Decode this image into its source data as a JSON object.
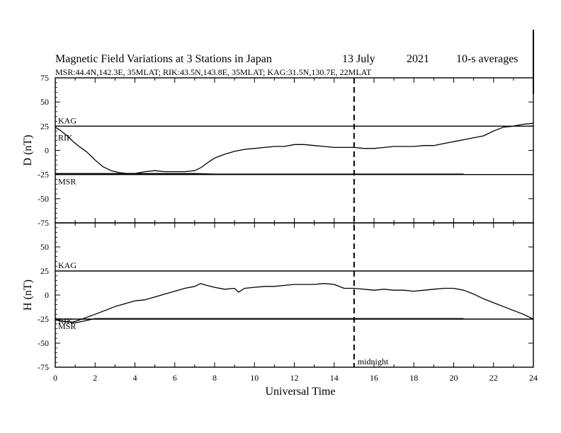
{
  "figure": {
    "title": "Magnetic Field Variations at 3 Stations in Japan",
    "date": "13 July",
    "year": "2021",
    "averaging": "10-s averages",
    "stations_line": "MSR:44.4N,142.3E, 35MLAT;  RIK:43.5N,143.8E, 35MLAT;  KAG:31.5N,130.7E, 22MLAT",
    "midnight_label": "midnight",
    "midnight_ut": 15
  },
  "chart_data": [
    {
      "type": "line",
      "title": "",
      "ylabel": "D (nT)",
      "xlabel": "",
      "xlim": [
        0,
        24
      ],
      "ylim": [
        -75,
        75
      ],
      "yticks": [
        "75",
        "50",
        "25",
        "0",
        "-25",
        "-50",
        "-75"
      ],
      "baselines": [
        {
          "name": "KAG",
          "y": 25
        },
        {
          "name": "RIK",
          "y": 13
        },
        {
          "name": "MSR",
          "y": -25
        }
      ],
      "series": [
        {
          "name": "RIK",
          "x": [
            0,
            0.3,
            0.6,
            0.9,
            1.2,
            1.6,
            2,
            2.4,
            2.8,
            3.2,
            3.6,
            4,
            4.5,
            5,
            5.5,
            6,
            6.5,
            7,
            7.3,
            7.7,
            8,
            8.5,
            9,
            9.5,
            10,
            10.5,
            11,
            11.5,
            12,
            12.5,
            13,
            13.5,
            14,
            14.5,
            15,
            15.5,
            16,
            16.5,
            17,
            17.5,
            18,
            18.5,
            19,
            19.5,
            20,
            20.5,
            21,
            21.5,
            22,
            22.5,
            23,
            23.5,
            24
          ],
          "y": [
            24,
            20,
            15,
            9,
            4,
            -2,
            -10,
            -17,
            -21,
            -23,
            -24,
            -24,
            -22,
            -21,
            -22,
            -22,
            -22,
            -21,
            -18,
            -12,
            -8,
            -4,
            -1,
            1,
            2,
            3,
            4,
            4,
            6,
            6,
            5,
            4,
            3,
            3,
            3,
            2,
            2,
            3,
            4,
            4,
            4,
            5,
            5,
            7,
            9,
            11,
            13,
            15,
            20,
            24,
            25,
            27,
            28
          ]
        },
        {
          "name": "MSR",
          "x": [
            0,
            1,
            2,
            3,
            4,
            5,
            6,
            7,
            8,
            9,
            10,
            11,
            12,
            13,
            14,
            15,
            16,
            17,
            18,
            19,
            20,
            20.5
          ],
          "y": [
            -24,
            -24,
            -24,
            -24,
            -24,
            -24,
            -24,
            -24,
            -24.5,
            -24.5,
            -24.5,
            -24.5,
            -24.5,
            -24.5,
            -24.5,
            -24.5,
            -24.5,
            -24.5,
            -24.5,
            -24.5,
            -24.5,
            -24.5
          ]
        }
      ]
    },
    {
      "type": "line",
      "title": "",
      "ylabel": "H (nT)",
      "xlabel": "Universal Time",
      "xlim": [
        0,
        24
      ],
      "ylim": [
        -75,
        75
      ],
      "xticks": [
        "0",
        "2",
        "4",
        "6",
        "8",
        "10",
        "12",
        "14",
        "16",
        "18",
        "20",
        "22",
        "24"
      ],
      "yticks": [
        "75",
        "50",
        "25",
        "0",
        "-25",
        "-50",
        "-75"
      ],
      "baselines": [
        {
          "name": "KAG",
          "y": 25
        },
        {
          "name": "RIK",
          "y": -27
        },
        {
          "name": "MSR",
          "y": -25
        }
      ],
      "series": [
        {
          "name": "RIK",
          "x": [
            0,
            0.3,
            0.6,
            0.9,
            1.2,
            1.6,
            2,
            2.5,
            3,
            3.5,
            4,
            4.5,
            5,
            5.5,
            6,
            6.5,
            7,
            7.3,
            7.6,
            8,
            8.5,
            9,
            9.2,
            9.5,
            10,
            10.5,
            11,
            11.5,
            12,
            12.5,
            13,
            13.5,
            14,
            14.5,
            15,
            15.5,
            16,
            16.5,
            17,
            17.5,
            18,
            18.5,
            19,
            19.5,
            20,
            20.5,
            21,
            21.5,
            22,
            22.5,
            23,
            23.5,
            24
          ],
          "y": [
            -24,
            -27,
            -28,
            -28,
            -26,
            -23,
            -20,
            -16,
            -12,
            -9,
            -6,
            -5,
            -2,
            1,
            4,
            7,
            9,
            12,
            10,
            8,
            6,
            7,
            3,
            7,
            8,
            9,
            9,
            10,
            11,
            11,
            11,
            12,
            11,
            7,
            7,
            6,
            5,
            6,
            5,
            5,
            4,
            5,
            6,
            7,
            7,
            5,
            1,
            -4,
            -8,
            -12,
            -16,
            -20,
            -25
          ]
        },
        {
          "name": "MSR",
          "x": [
            0,
            1,
            2,
            3,
            4,
            5,
            6,
            7,
            8,
            9,
            10,
            11,
            12,
            13,
            14,
            15,
            16,
            17,
            18,
            19,
            20,
            20.5
          ],
          "y": [
            -26,
            -29,
            -24.5,
            -24.5,
            -24.5,
            -24.5,
            -24.5,
            -24.5,
            -24.5,
            -24.5,
            -24.5,
            -24.5,
            -24.5,
            -24.5,
            -24.5,
            -24.5,
            -24.5,
            -24.5,
            -24.5,
            -24.5,
            -24.5,
            -24.5
          ]
        }
      ]
    }
  ]
}
